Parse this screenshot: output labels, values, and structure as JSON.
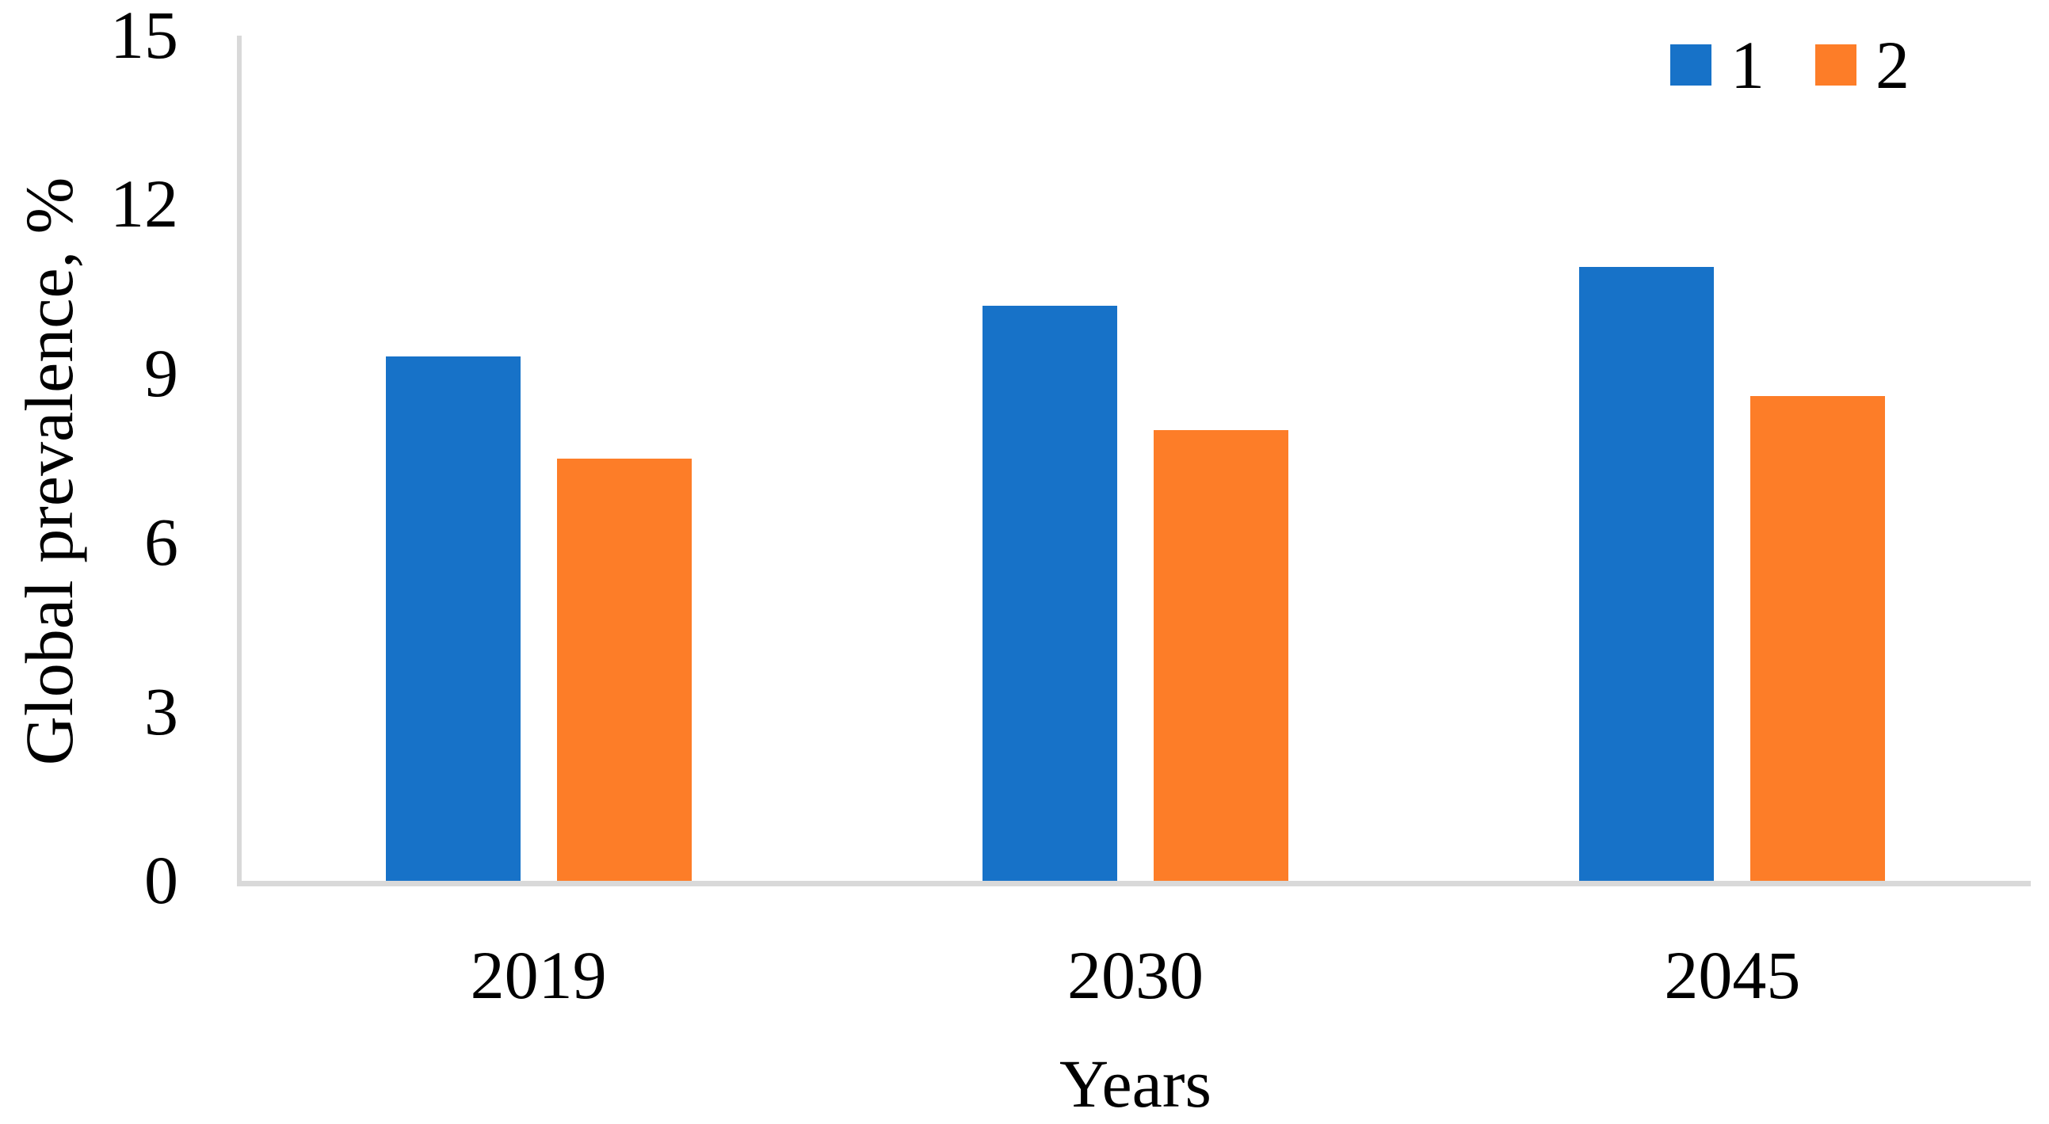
{
  "chart_data": {
    "type": "bar",
    "title": "",
    "categories": [
      "2019",
      "2030",
      "2045"
    ],
    "series": [
      {
        "name": "1",
        "color": "#1772C8",
        "values": [
          9.3,
          10.2,
          10.9
        ]
      },
      {
        "name": "2",
        "color": "#FD7D28",
        "values": [
          7.5,
          8.0,
          8.6
        ]
      }
    ],
    "xlabel": "Years",
    "ylabel": "Global prevalence, %",
    "ylim": [
      0,
      15
    ],
    "yticks": [
      0,
      3,
      6,
      9,
      12,
      15
    ],
    "grid": false,
    "legend_position": "top-right",
    "axis_color": "#D9D9D9",
    "text_color": "#000000"
  }
}
